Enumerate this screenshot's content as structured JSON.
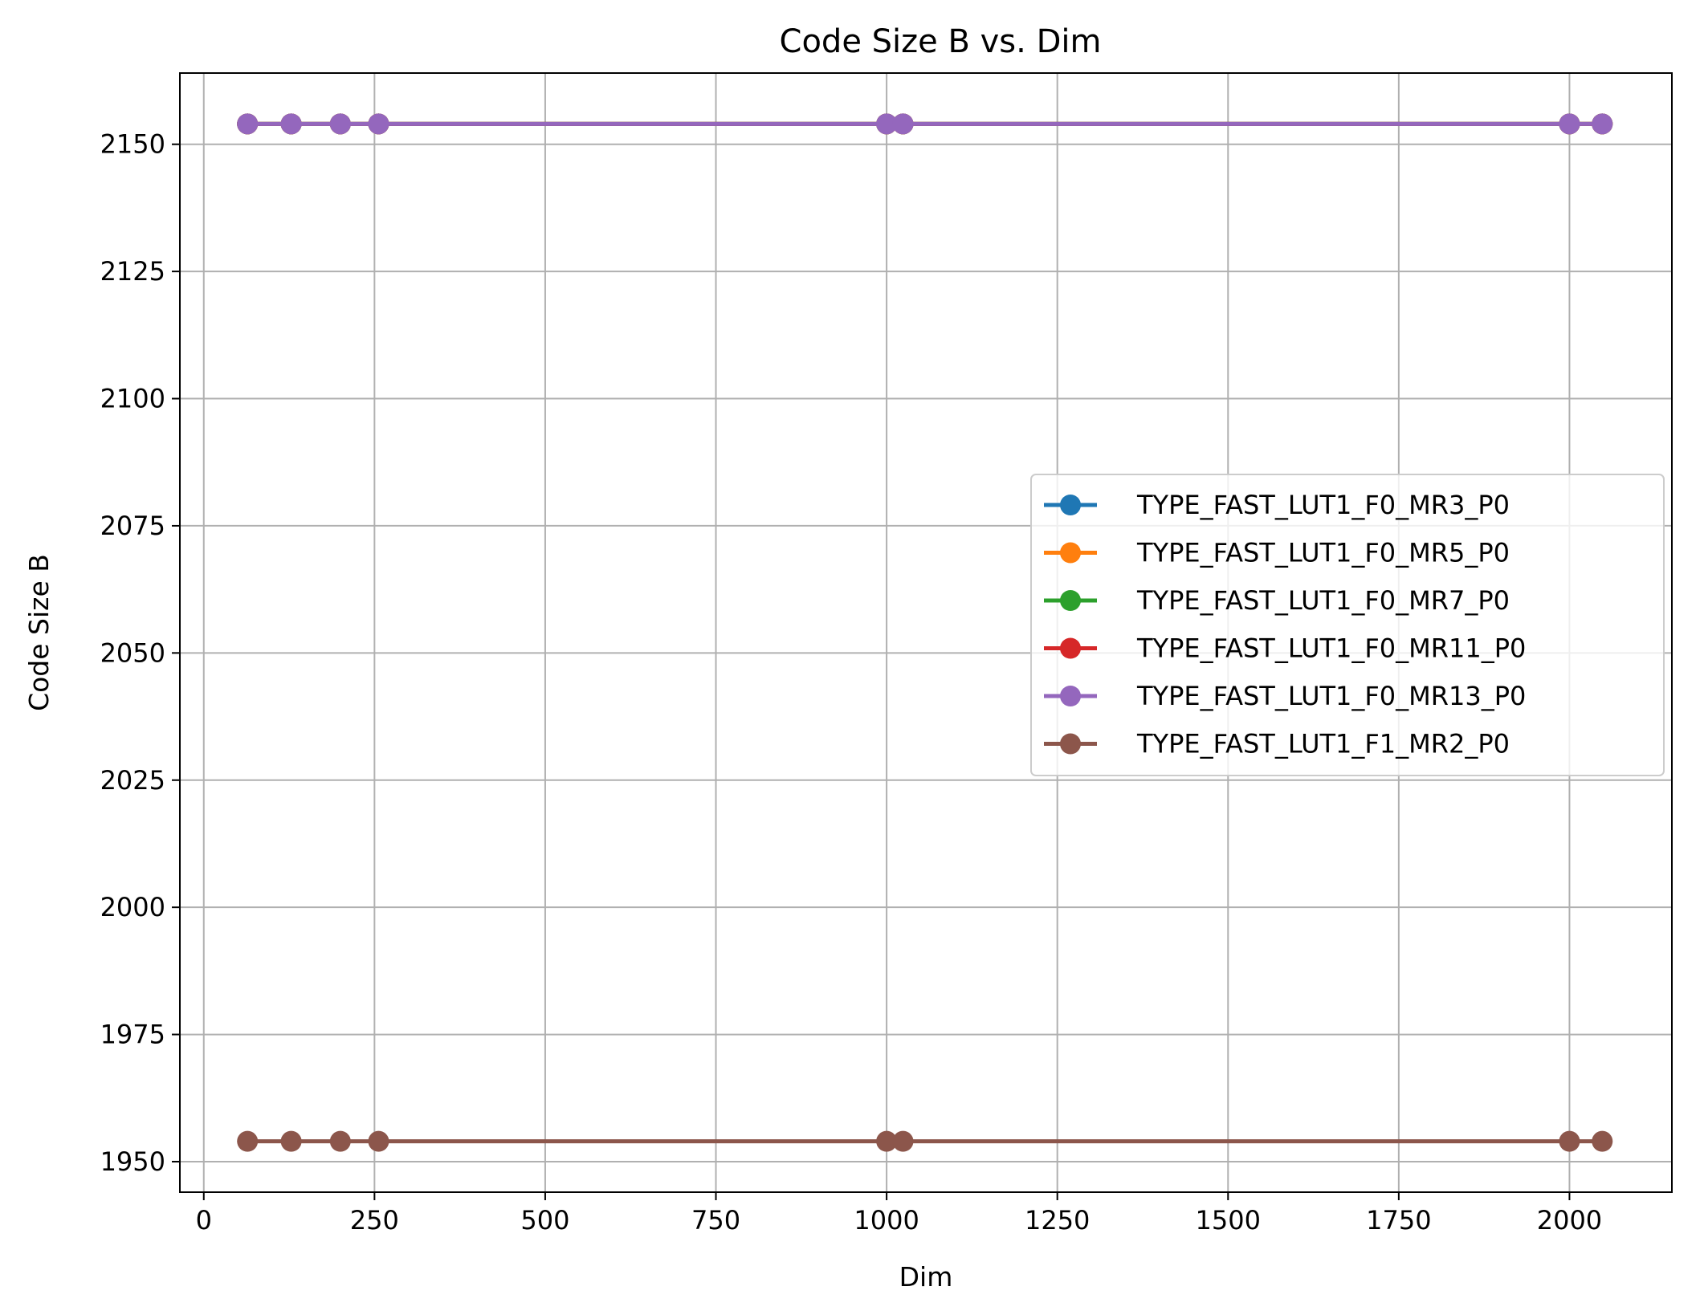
{
  "chart_data": {
    "type": "line",
    "title": "Code Size B vs. Dim",
    "xlabel": "Dim",
    "ylabel": "Code Size B",
    "xlim": [
      -35,
      2150
    ],
    "ylim": [
      1944,
      2164
    ],
    "xticks": [
      0,
      250,
      500,
      750,
      1000,
      1250,
      1500,
      1750,
      2000
    ],
    "yticks": [
      1950,
      1975,
      2000,
      2025,
      2050,
      2075,
      2100,
      2125,
      2150
    ],
    "grid": true,
    "legend_position": "center-right",
    "x": [
      64,
      128,
      200,
      256,
      1000,
      1024,
      2000,
      2048
    ],
    "series": [
      {
        "name": "TYPE_FAST_LUT1_F0_MR3_P0",
        "color": "#1f77b4",
        "values": [
          2154,
          2154,
          2154,
          2154,
          2154,
          2154,
          2154,
          2154
        ]
      },
      {
        "name": "TYPE_FAST_LUT1_F0_MR5_P0",
        "color": "#ff7f0e",
        "values": [
          2154,
          2154,
          2154,
          2154,
          2154,
          2154,
          2154,
          2154
        ]
      },
      {
        "name": "TYPE_FAST_LUT1_F0_MR7_P0",
        "color": "#2ca02c",
        "values": [
          2154,
          2154,
          2154,
          2154,
          2154,
          2154,
          2154,
          2154
        ]
      },
      {
        "name": "TYPE_FAST_LUT1_F0_MR11_P0",
        "color": "#d62728",
        "values": [
          2154,
          2154,
          2154,
          2154,
          2154,
          2154,
          2154,
          2154
        ]
      },
      {
        "name": "TYPE_FAST_LUT1_F0_MR13_P0",
        "color": "#9467bd",
        "values": [
          2154,
          2154,
          2154,
          2154,
          2154,
          2154,
          2154,
          2154
        ]
      },
      {
        "name": "TYPE_FAST_LUT1_F1_MR2_P0",
        "color": "#8c564b",
        "values": [
          1954,
          1954,
          1954,
          1954,
          1954,
          1954,
          1954,
          1954
        ]
      }
    ]
  }
}
